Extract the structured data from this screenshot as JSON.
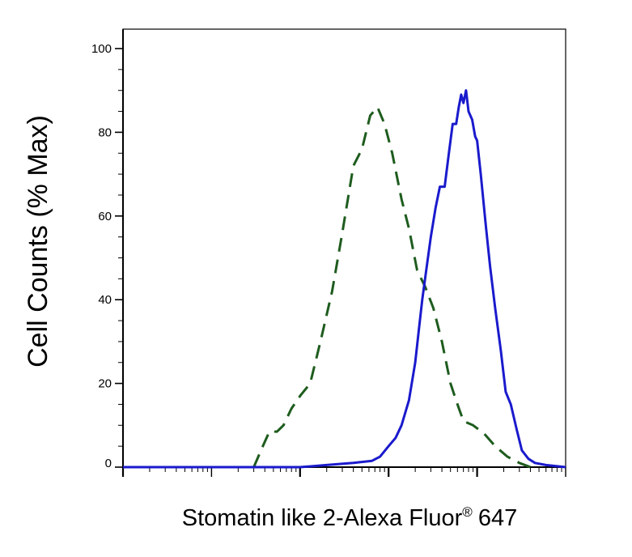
{
  "chart_data": {
    "type": "line",
    "xlabel": "Stomatin like 2-Alexa Fluor",
    "xlabel_mark": "®",
    "xlabel_suffix": "647",
    "ylabel": "Cell Counts (% Max)",
    "xscale": "log",
    "xlim": [
      0.01,
      1000
    ],
    "ylim": [
      0,
      100
    ],
    "yticks": [
      "0",
      "20",
      "40",
      "60",
      "80",
      "100"
    ],
    "grid": false,
    "series": [
      {
        "style": "dashed",
        "color": "#1e5c1e",
        "points": [
          [
            0.3,
            0
          ],
          [
            0.38,
            5
          ],
          [
            0.45,
            8.5
          ],
          [
            0.55,
            8.5
          ],
          [
            0.65,
            10
          ],
          [
            0.8,
            14
          ],
          [
            1.0,
            17
          ],
          [
            1.3,
            20
          ],
          [
            1.7,
            30
          ],
          [
            2.3,
            42
          ],
          [
            3.0,
            56
          ],
          [
            4.0,
            72
          ],
          [
            5.0,
            76
          ],
          [
            6.2,
            84
          ],
          [
            7.5,
            86
          ],
          [
            9.0,
            82
          ],
          [
            11.0,
            75
          ],
          [
            14.0,
            64
          ],
          [
            17.0,
            57
          ],
          [
            21.0,
            47
          ],
          [
            26.0,
            43
          ],
          [
            32.0,
            38
          ],
          [
            40.0,
            30
          ],
          [
            50.0,
            20
          ],
          [
            60.0,
            15
          ],
          [
            70.0,
            11
          ],
          [
            90.0,
            10
          ],
          [
            120.0,
            8
          ],
          [
            160.0,
            5
          ],
          [
            220.0,
            2.5
          ],
          [
            300.0,
            1
          ],
          [
            400.0,
            0
          ]
        ]
      },
      {
        "style": "solid",
        "color": "#1a1acd",
        "points": [
          [
            0.01,
            0
          ],
          [
            1.0,
            0
          ],
          [
            2.0,
            0.5
          ],
          [
            4.0,
            1
          ],
          [
            6.5,
            1.5
          ],
          [
            8.0,
            2.5
          ],
          [
            10.0,
            5
          ],
          [
            12.0,
            7
          ],
          [
            14.0,
            10
          ],
          [
            17.0,
            16
          ],
          [
            20.0,
            25
          ],
          [
            22.0,
            33
          ],
          [
            24.0,
            40
          ],
          [
            27.0,
            48
          ],
          [
            30.0,
            55
          ],
          [
            34.0,
            62
          ],
          [
            38.0,
            67
          ],
          [
            43.0,
            67
          ],
          [
            48.0,
            75
          ],
          [
            53.0,
            82
          ],
          [
            58.0,
            82
          ],
          [
            62.0,
            86
          ],
          [
            66.0,
            89
          ],
          [
            70.0,
            87
          ],
          [
            75.0,
            90
          ],
          [
            80.0,
            85
          ],
          [
            88.0,
            83
          ],
          [
            95.0,
            79
          ],
          [
            100.0,
            78
          ],
          [
            110.0,
            70
          ],
          [
            125.0,
            58
          ],
          [
            140.0,
            48
          ],
          [
            160.0,
            38
          ],
          [
            185.0,
            28
          ],
          [
            210.0,
            18
          ],
          [
            240.0,
            15
          ],
          [
            280.0,
            9
          ],
          [
            320.0,
            4
          ],
          [
            380.0,
            2
          ],
          [
            450.0,
            1
          ],
          [
            600.0,
            0.5
          ],
          [
            1000.0,
            0
          ]
        ]
      }
    ]
  }
}
